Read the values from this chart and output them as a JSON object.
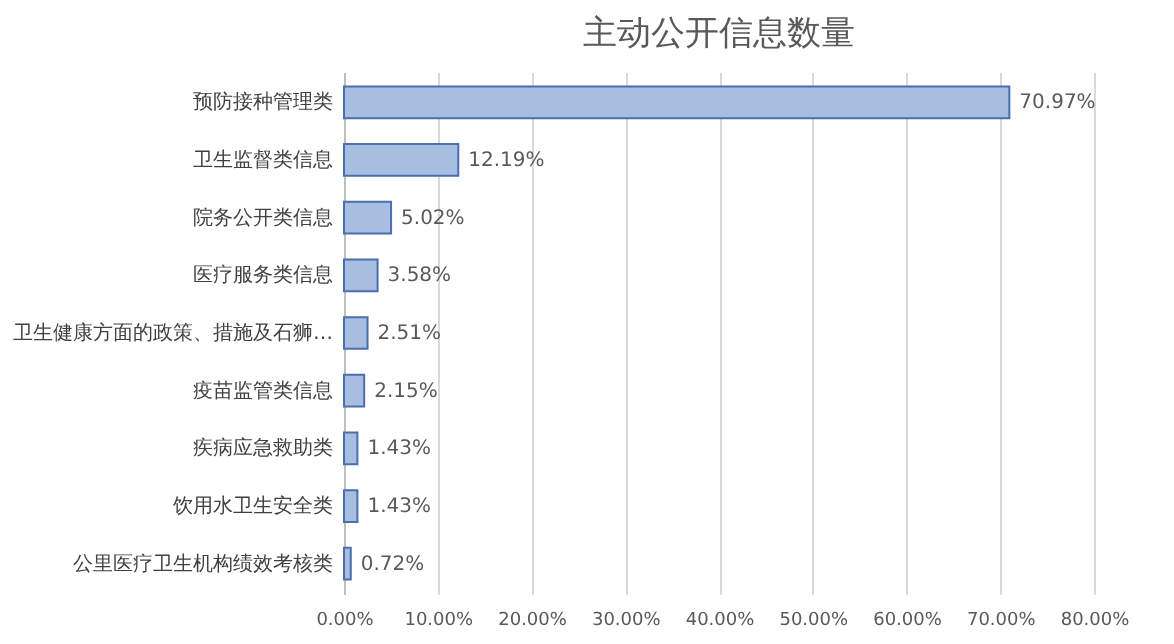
{
  "chart_data": {
    "type": "bar",
    "orientation": "horizontal",
    "title": "主动公开信息数量",
    "categories": [
      "预防接种管理类",
      "卫生监督类信息",
      "院务公开类信息",
      "医疗服务类信息",
      "卫生健康方面的政策、措施及石狮…",
      "疫苗监管类信息",
      "疾病应急救助类",
      "饮用水卫生安全类",
      "公里医疗卫生机构绩效考核类"
    ],
    "values": [
      70.97,
      12.19,
      5.02,
      3.58,
      2.51,
      2.15,
      1.43,
      1.43,
      0.72
    ],
    "value_labels": [
      "70.97%",
      "12.19%",
      "5.02%",
      "3.58%",
      "2.51%",
      "2.15%",
      "1.43%",
      "1.43%",
      "0.72%"
    ],
    "color": "#a9bde0",
    "xlim": [
      0,
      80
    ],
    "xticks": [
      {
        "value": 0,
        "label": "0.00%"
      },
      {
        "value": 10,
        "label": "10.00%"
      },
      {
        "value": 20,
        "label": "20.00%"
      },
      {
        "value": 30,
        "label": "30.00%"
      },
      {
        "value": 40,
        "label": "40.00%"
      },
      {
        "value": 50,
        "label": "50.00%"
      },
      {
        "value": 60,
        "label": "60.00%"
      },
      {
        "value": 70,
        "label": "70.00%"
      },
      {
        "value": 80,
        "label": "80.00%"
      }
    ],
    "grid": "x"
  }
}
